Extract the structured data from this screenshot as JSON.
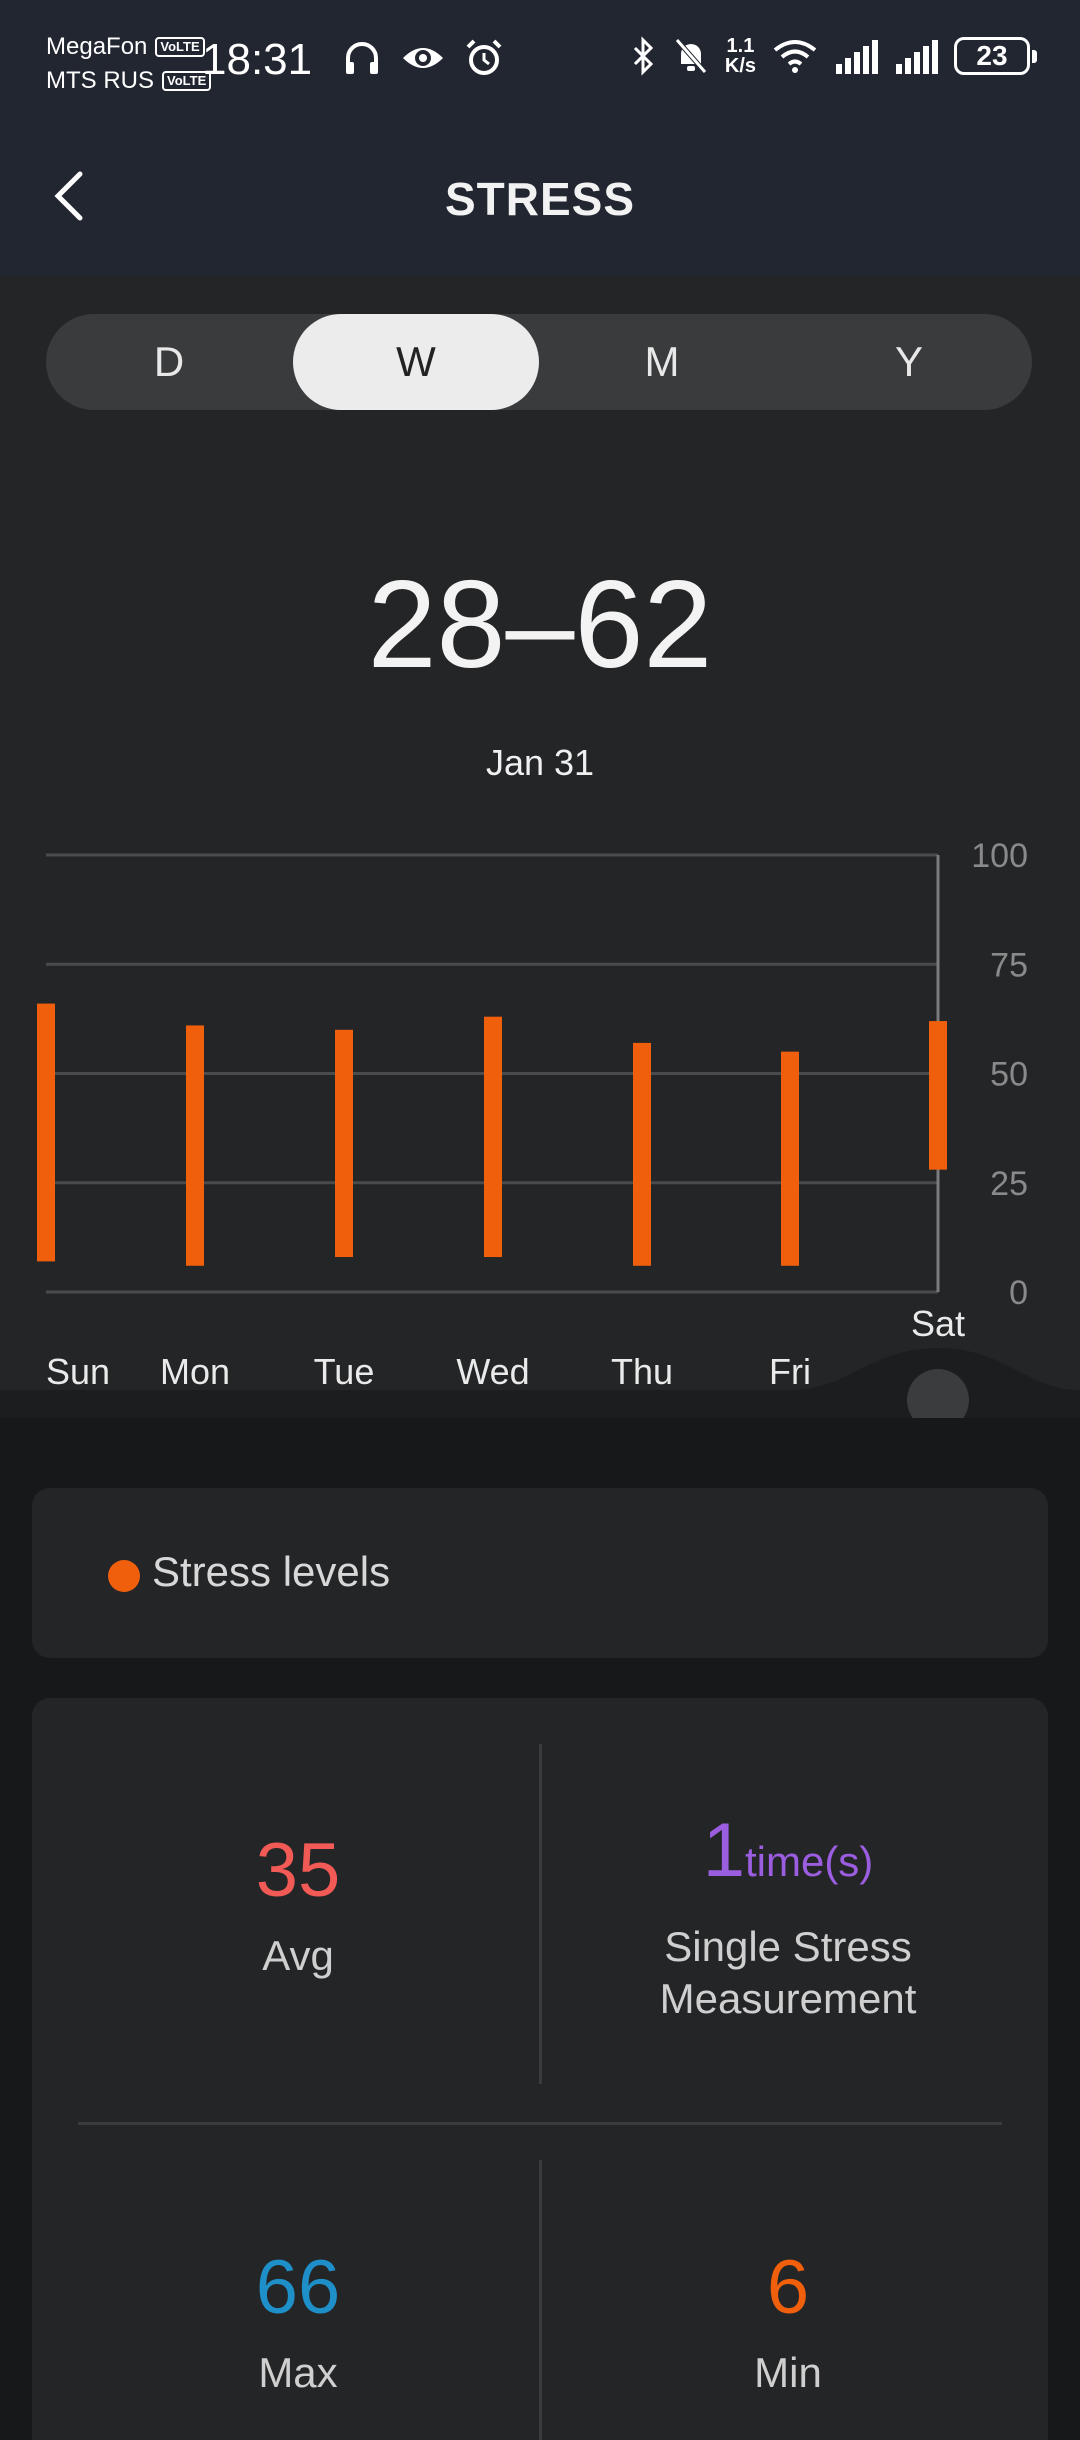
{
  "status_bar": {
    "carrier1": "MegaFon",
    "carrier2": "MTS RUS",
    "volte": "VoLTE",
    "time": "18:31",
    "speed_value": "1.1",
    "speed_unit": "K/s",
    "battery": "23",
    "icons_left": [
      "headphones-icon",
      "eye-icon",
      "alarm-icon"
    ],
    "icons_right": [
      "bluetooth-icon",
      "bell-muted-icon",
      "wifi-icon",
      "signal-icon",
      "signal-icon"
    ]
  },
  "header": {
    "title": "STRESS"
  },
  "period_tabs": {
    "items": [
      "D",
      "W",
      "M",
      "Y"
    ],
    "selected": "W"
  },
  "summary": {
    "range": "28–62",
    "date": "Jan 31"
  },
  "chart_data": {
    "type": "bar",
    "subtype": "range",
    "categories": [
      "Sun",
      "Mon",
      "Tue",
      "Wed",
      "Thu",
      "Fri",
      "Sat"
    ],
    "series": [
      {
        "name": "Stress levels",
        "low": [
          7,
          6,
          8,
          8,
          6,
          6,
          28
        ],
        "high": [
          66,
          61,
          60,
          63,
          57,
          55,
          62
        ]
      }
    ],
    "selected_category": "Sat",
    "ylim": [
      0,
      100
    ],
    "yticks": [
      0,
      25,
      50,
      75,
      100
    ],
    "grid": true,
    "y_axis_position": "right",
    "color": "#ef5f0c"
  },
  "legend": {
    "label": "Stress levels",
    "color": "#ef5f0c"
  },
  "stats": {
    "avg": {
      "value": "35",
      "label": "Avg",
      "color": "#f25a55"
    },
    "single": {
      "value": "1",
      "unit": "time(s)",
      "label_line1": "Single Stress",
      "label_line2": "Measurement",
      "color": "#9b5ee0"
    },
    "max": {
      "value": "66",
      "label": "Max",
      "color": "#1e8fc8"
    },
    "min": {
      "value": "6",
      "label": "Min",
      "color": "#ef5f0c"
    }
  }
}
